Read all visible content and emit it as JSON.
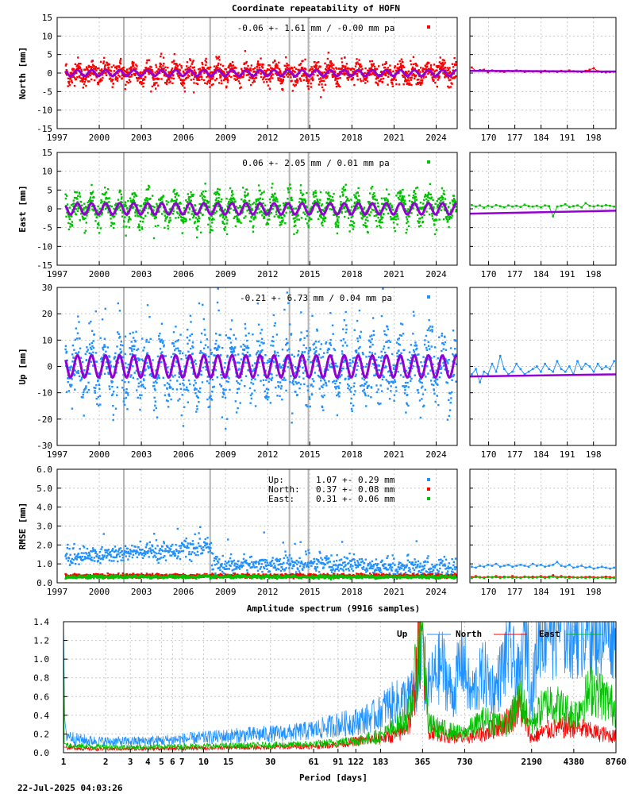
{
  "main_title": "Coordinate repeatability of HOFN",
  "spectrum_title": "Amplitude spectrum (9916 samples)",
  "timestamp": "22-Jul-2025 04:03:26",
  "colors": {
    "north": "#ff0000",
    "east": "#00c000",
    "up": "#1e90ff",
    "model": "#9400d3",
    "breaks": "#b4b4b4"
  },
  "breaks_years": [
    2001.75,
    2007.9,
    2013.55,
    2014.9
  ],
  "chart_data": [
    {
      "id": "north",
      "type": "scatter",
      "ylabel": "North [mm]",
      "ylim": [
        -15,
        15
      ],
      "yticks": [
        -15,
        -10,
        -5,
        0,
        5,
        10,
        15
      ],
      "xlim": [
        1997,
        2025.5
      ],
      "xticks": [
        1997,
        2000,
        2003,
        2006,
        2009,
        2012,
        2015,
        2018,
        2021,
        2024
      ],
      "annotation": "-0.06 +- 1.61 mm / -0.00 mm pa",
      "seasonal_amplitude": 0.8,
      "scatter_sd": 1.61,
      "recent": {
        "xticks": [
          170,
          177,
          184,
          191,
          198
        ],
        "xlim": [
          165,
          204
        ],
        "ylim": [
          -15,
          15
        ],
        "values": [
          1.5,
          0.6,
          0.8,
          0.9,
          0.2,
          0.7,
          0.5,
          0.4,
          0.3,
          0.6,
          0.5,
          0.7,
          0.6,
          0.3,
          0.5,
          0.4,
          0.5,
          0.2,
          0.6,
          0.4,
          0.5,
          0.3,
          0.6,
          0.4,
          0.7,
          0.5,
          0.4,
          0.3,
          0.6,
          0.9,
          1.3,
          0.5,
          0.3,
          0.2,
          0.3,
          0.4
        ]
      }
    },
    {
      "id": "east",
      "type": "scatter",
      "ylabel": "East [mm]",
      "ylim": [
        -15,
        15
      ],
      "yticks": [
        -15,
        -10,
        -5,
        0,
        5,
        10,
        15
      ],
      "xlim": [
        1997,
        2025.5
      ],
      "xticks": [
        1997,
        2000,
        2003,
        2006,
        2009,
        2012,
        2015,
        2018,
        2021,
        2024
      ],
      "annotation": "0.06 +- 2.05 mm /  0.01 mm pa",
      "seasonal_amplitude": 1.5,
      "scatter_sd": 2.05,
      "recent": {
        "xticks": [
          170,
          177,
          184,
          191,
          198
        ],
        "xlim": [
          165,
          204
        ],
        "ylim": [
          -15,
          15
        ],
        "values": [
          1.0,
          0.6,
          0.9,
          0.3,
          0.8,
          0.5,
          1.0,
          0.7,
          0.4,
          0.9,
          0.6,
          0.8,
          0.5,
          1.1,
          0.7,
          0.6,
          0.8,
          0.4,
          0.9,
          0.7,
          -2.0,
          0.6,
          0.8,
          1.2,
          0.5,
          0.7,
          0.9,
          0.4,
          1.5,
          0.8,
          0.6,
          0.9,
          0.7,
          1.0,
          0.8,
          0.6
        ]
      }
    },
    {
      "id": "up",
      "type": "scatter",
      "ylabel": "Up [mm]",
      "ylim": [
        -30,
        30
      ],
      "yticks": [
        -30,
        -20,
        -10,
        0,
        10,
        20,
        30
      ],
      "xlim": [
        1997,
        2025.5
      ],
      "xticks": [
        1997,
        2000,
        2003,
        2006,
        2009,
        2012,
        2015,
        2018,
        2021,
        2024
      ],
      "annotation": "-0.21 +- 6.73 mm /  0.04 mm pa",
      "seasonal_amplitude": 4.2,
      "scatter_sd": 6.73,
      "recent": {
        "xticks": [
          170,
          177,
          184,
          191,
          198
        ],
        "xlim": [
          165,
          204
        ],
        "ylim": [
          -30,
          30
        ],
        "values": [
          -3,
          -1,
          -6,
          -2,
          -3,
          1,
          -2,
          4,
          -1,
          -3,
          -2,
          1,
          -1,
          -3,
          -2,
          -1,
          0,
          -2,
          1,
          -1,
          -2,
          2,
          -1,
          -2,
          0,
          -3,
          2,
          -1,
          1,
          0,
          -2,
          1,
          -1,
          0,
          -1,
          2
        ]
      }
    },
    {
      "id": "rmse",
      "type": "scatter",
      "ylabel": "RMSE [mm]",
      "ylim": [
        0,
        6
      ],
      "yticks": [
        "0.0",
        "1.0",
        "2.0",
        "3.0",
        "4.0",
        "5.0",
        "6.0"
      ],
      "xlim": [
        1997,
        2025.5
      ],
      "xticks": [
        1997,
        2000,
        2003,
        2006,
        2009,
        2012,
        2015,
        2018,
        2021,
        2024
      ],
      "legend": [
        {
          "label": "Up:",
          "text": "1.07 +- 0.29 mm"
        },
        {
          "label": "North:",
          "text": "0.37 +- 0.08 mm"
        },
        {
          "label": "East:",
          "text": "0.31 +- 0.06 mm"
        }
      ],
      "series_levels": {
        "up": 1.07,
        "north": 0.37,
        "east": 0.31
      },
      "recent": {
        "xticks": [
          170,
          177,
          184,
          191,
          198
        ],
        "xlim": [
          165,
          204
        ],
        "ylim": [
          0,
          6
        ],
        "up": [
          0.85,
          0.8,
          0.9,
          0.85,
          0.95,
          0.9,
          1.0,
          0.85,
          0.9,
          0.95,
          0.85,
          0.9,
          0.95,
          0.9,
          0.85,
          1.0,
          0.9,
          0.95,
          0.85,
          0.9,
          0.95,
          1.1,
          0.9,
          0.85,
          0.95,
          0.8,
          0.85,
          0.9,
          0.8,
          0.85,
          0.75,
          0.8,
          0.85,
          0.8,
          0.75,
          0.8
        ],
        "north": [
          0.3,
          0.35,
          0.3,
          0.28,
          0.32,
          0.3,
          0.35,
          0.3,
          0.32,
          0.3,
          0.35,
          0.3,
          0.28,
          0.33,
          0.3,
          0.32,
          0.3,
          0.35,
          0.3,
          0.32,
          0.4,
          0.3,
          0.35,
          0.3,
          0.32,
          0.3,
          0.28,
          0.3,
          0.3,
          0.32,
          0.3,
          0.28,
          0.3,
          0.32,
          0.3,
          0.28
        ],
        "east": [
          0.25,
          0.3,
          0.28,
          0.25,
          0.3,
          0.28,
          0.3,
          0.25,
          0.28,
          0.3,
          0.26,
          0.28,
          0.25,
          0.3,
          0.28,
          0.26,
          0.28,
          0.3,
          0.25,
          0.28,
          0.32,
          0.26,
          0.3,
          0.28,
          0.25,
          0.28,
          0.26,
          0.28,
          0.25,
          0.28,
          0.25,
          0.26,
          0.28,
          0.25,
          0.24,
          0.26
        ]
      }
    },
    {
      "id": "spectrum",
      "type": "line",
      "xlabel": "Period [days]",
      "ylim": [
        0,
        1.4
      ],
      "yticks": [
        "0.0",
        "0.2",
        "0.4",
        "0.6",
        "0.8",
        "1.0",
        "1.2",
        "1.4"
      ],
      "xscale": "log",
      "xlim": [
        1,
        8760
      ],
      "xticks": [
        "1",
        "2",
        "3",
        "4",
        "5",
        "6",
        "7",
        "10",
        "15",
        "30",
        "61",
        "91",
        "122",
        "183",
        "365",
        "730",
        "2190",
        "4380",
        "8760"
      ],
      "legend": [
        "Up",
        "North",
        "East"
      ],
      "series": [
        {
          "name": "Up",
          "x": [
            1,
            1.02,
            1.05,
            1.2,
            1.5,
            2,
            3,
            5,
            10,
            20,
            40,
            60,
            90,
            120,
            150,
            180,
            200,
            250,
            300,
            340,
            365,
            380,
            420,
            500,
            600,
            700,
            800,
            1000,
            1200,
            1500,
            1800,
            2000,
            2190,
            2500,
            3000
          ],
          "y": [
            1.4,
            0.35,
            0.2,
            0.15,
            0.13,
            0.12,
            0.12,
            0.13,
            0.16,
            0.19,
            0.21,
            0.24,
            0.3,
            0.33,
            0.37,
            0.42,
            0.5,
            0.55,
            0.6,
            0.7,
            1.4,
            0.6,
            0.75,
            0.95,
            0.6,
            1.05,
            0.6,
            0.85,
            0.65,
            1.1,
            0.75,
            1.4,
            0.55,
            1.4,
            1.4
          ]
        },
        {
          "name": "North",
          "x": [
            1,
            1.5,
            3,
            10,
            30,
            60,
            90,
            120,
            183,
            250,
            300,
            365,
            400,
            500,
            700,
            1000,
            1500,
            1800,
            2190,
            2500,
            3000,
            4380,
            6000,
            8760
          ],
          "y": [
            0.06,
            0.04,
            0.04,
            0.05,
            0.06,
            0.07,
            0.09,
            0.12,
            0.15,
            0.2,
            0.35,
            1.4,
            0.25,
            0.2,
            0.15,
            0.2,
            0.35,
            0.5,
            0.15,
            0.2,
            0.25,
            0.28,
            0.22,
            0.17
          ]
        },
        {
          "name": "East",
          "x": [
            1,
            1.01,
            1.2,
            3,
            10,
            30,
            60,
            90,
            120,
            183,
            250,
            300,
            365,
            400,
            500,
            700,
            1000,
            1500,
            1800,
            2190,
            2500,
            3000,
            4380,
            6000,
            8760
          ],
          "y": [
            1.4,
            0.1,
            0.07,
            0.06,
            0.07,
            0.08,
            0.09,
            0.11,
            0.13,
            0.18,
            0.3,
            0.45,
            1.4,
            0.3,
            0.25,
            0.2,
            0.35,
            0.3,
            0.6,
            0.3,
            0.45,
            0.55,
            0.4,
            0.7,
            0.47
          ]
        }
      ]
    }
  ]
}
